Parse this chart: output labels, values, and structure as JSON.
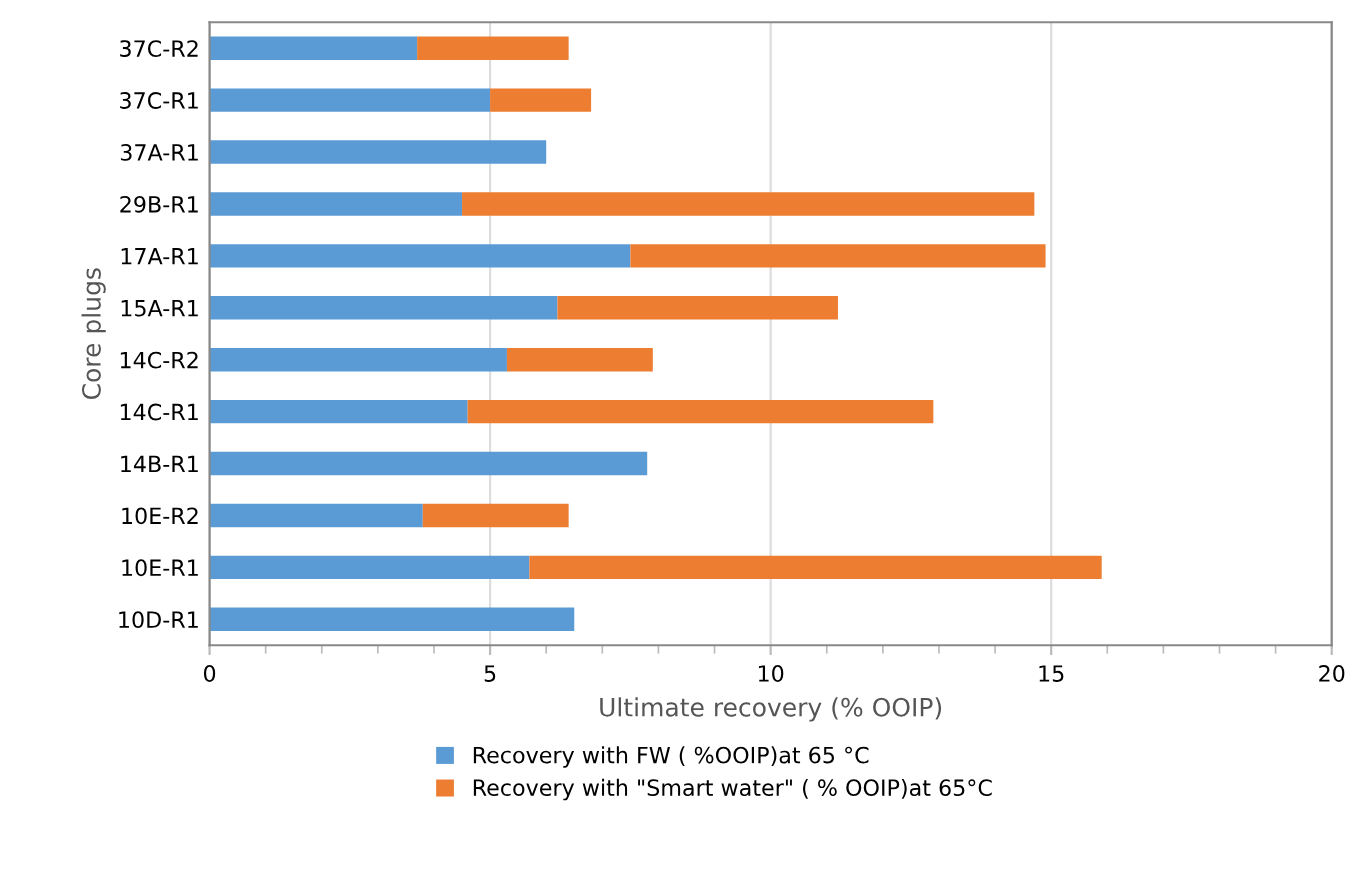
{
  "chart_data": {
    "type": "bar",
    "orientation": "horizontal",
    "stacked": true,
    "categories": [
      "37C-R2",
      "37C-R1",
      "37A-R1",
      "29B-R1",
      "17A-R1",
      "15A-R1",
      "14C-R2",
      "14C-R1",
      "14B-R1",
      "10E-R2",
      "10E-R1",
      "10D-R1"
    ],
    "series": [
      {
        "name": "Recovery with FW ( %OOIP)at 65 °C",
        "color": "#5b9bd5",
        "values": [
          3.7,
          5.0,
          6.0,
          4.5,
          7.5,
          6.2,
          5.3,
          4.6,
          7.8,
          3.8,
          5.7,
          6.5
        ]
      },
      {
        "name": "Recovery with \"Smart water\" ( % OOIP)at 65°C",
        "color": "#ed7d31",
        "values": [
          2.7,
          1.8,
          null,
          10.2,
          7.4,
          5.0,
          2.6,
          8.3,
          null,
          2.6,
          10.2,
          null
        ]
      }
    ],
    "xlabel": "Ultimate recovery (% OOIP)",
    "ylabel": "Core plugs",
    "xlim": [
      0,
      20
    ],
    "xticks": [
      0,
      5,
      10,
      15,
      20
    ],
    "grid": "x",
    "legend": "bottom"
  }
}
